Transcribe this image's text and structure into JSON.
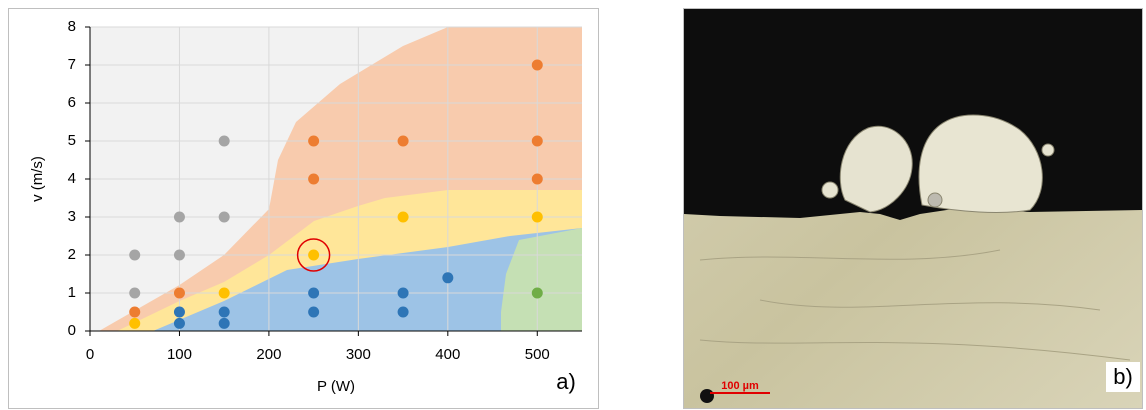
{
  "chart_data": {
    "type": "scatter",
    "xlabel": "P (W)",
    "ylabel": "v (m/s)",
    "xlim": [
      0,
      550
    ],
    "xticks": [
      0,
      100,
      200,
      300,
      400,
      500
    ],
    "ylim": [
      0,
      8
    ],
    "yticks": [
      0,
      1,
      2,
      3,
      4,
      5,
      6,
      7,
      8
    ],
    "grid": true,
    "series": [
      {
        "color": "#a5a5a5",
        "x": [
          50,
          50,
          100,
          100,
          150,
          150
        ],
        "values": [
          1,
          2,
          2,
          3,
          3,
          5
        ]
      },
      {
        "color": "#ed7d31",
        "x": [
          50,
          100,
          250,
          250,
          350,
          500,
          500,
          500
        ],
        "values": [
          0.5,
          1,
          4,
          5,
          5,
          4,
          5,
          7
        ]
      },
      {
        "color": "#ffc000",
        "x": [
          50,
          150,
          250,
          350,
          500
        ],
        "values": [
          0.2,
          1,
          2,
          3,
          3
        ]
      },
      {
        "color": "#2e75b6",
        "x": [
          100,
          100,
          150,
          150,
          250,
          250,
          350,
          350,
          400
        ],
        "values": [
          0.2,
          0.5,
          0.2,
          0.5,
          0.5,
          1,
          0.5,
          1,
          1.4
        ]
      },
      {
        "color": "#70ad47",
        "x": [
          500
        ],
        "values": [
          1
        ]
      }
    ],
    "panel_label": "a)"
  },
  "image_panel": {
    "panel_label": "b)",
    "scale_bar": "100 µm"
  }
}
